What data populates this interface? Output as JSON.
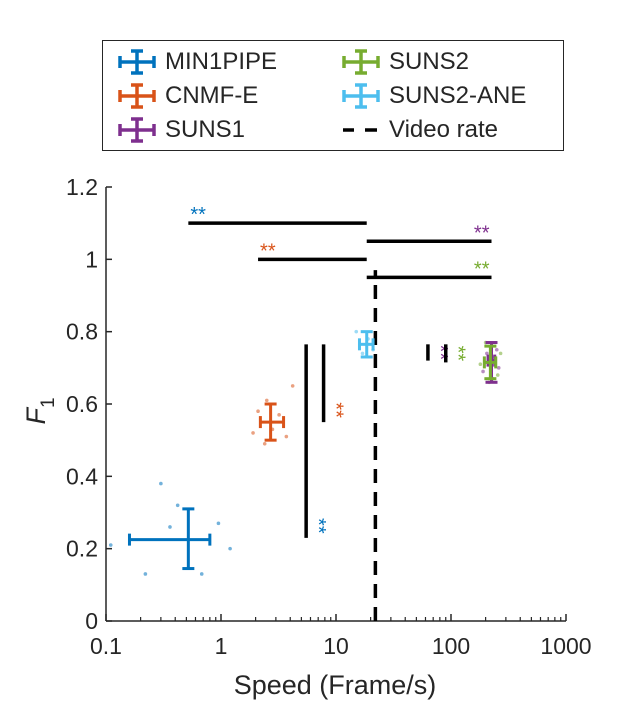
{
  "chart_data": {
    "type": "scatter",
    "xlabel": "Speed (Frame/s)",
    "ylabel": "F",
    "ylabel_subscript": "1",
    "x_scale": "log",
    "xlim": [
      0.1,
      1000
    ],
    "ylim": [
      0,
      1.2
    ],
    "x_ticks": [
      "0.1",
      "1",
      "10",
      "100",
      "1000"
    ],
    "y_ticks": [
      "0",
      "0.2",
      "0.4",
      "0.6",
      "0.8",
      "1",
      "1.2"
    ],
    "legend": {
      "placement": "top",
      "columns": 2
    },
    "series": [
      {
        "name": "MIN1PIPE",
        "color": "#0072BD",
        "x": 0.52,
        "x_err": [
          0.16,
          0.8
        ],
        "y": 0.225,
        "y_err": [
          0.145,
          0.31
        ],
        "points": [
          [
            0.11,
            0.21
          ],
          [
            0.22,
            0.13
          ],
          [
            0.3,
            0.38
          ],
          [
            0.36,
            0.26
          ],
          [
            0.42,
            0.32
          ],
          [
            0.68,
            0.13
          ],
          [
            0.95,
            0.27
          ],
          [
            1.2,
            0.2
          ]
        ]
      },
      {
        "name": "CNMF-E",
        "color": "#D95319",
        "x": 2.7,
        "x_err": [
          2.2,
          3.5
        ],
        "y": 0.55,
        "y_err": [
          0.5,
          0.6
        ],
        "points": [
          [
            1.9,
            0.52
          ],
          [
            2.1,
            0.58
          ],
          [
            2.4,
            0.49
          ],
          [
            2.8,
            0.53
          ],
          [
            3.2,
            0.57
          ],
          [
            3.7,
            0.51
          ],
          [
            4.2,
            0.65
          ],
          [
            2.5,
            0.61
          ]
        ]
      },
      {
        "name": "SUNS1",
        "color": "#7E2F8E",
        "x": 225,
        "x_err": [
          210,
          240
        ],
        "y": 0.72,
        "y_err": [
          0.66,
          0.77
        ],
        "points": [
          [
            190,
            0.69
          ],
          [
            205,
            0.74
          ],
          [
            230,
            0.67
          ],
          [
            250,
            0.75
          ],
          [
            260,
            0.7
          ]
        ]
      },
      {
        "name": "SUNS2",
        "color": "#77AC30",
        "x": 220,
        "x_err": [
          195,
          245
        ],
        "y": 0.715,
        "y_err": [
          0.67,
          0.76
        ],
        "points": [
          [
            180,
            0.71
          ],
          [
            200,
            0.77
          ],
          [
            215,
            0.66
          ],
          [
            240,
            0.73
          ],
          [
            255,
            0.68
          ],
          [
            270,
            0.74
          ]
        ]
      },
      {
        "name": "SUNS2-ANE",
        "color": "#4DBEEE",
        "x": 18.5,
        "x_err": [
          16,
          21
        ],
        "y": 0.765,
        "y_err": [
          0.73,
          0.8
        ],
        "points": [
          [
            15,
            0.8
          ],
          [
            17,
            0.74
          ],
          [
            19,
            0.78
          ],
          [
            21,
            0.75
          ]
        ]
      },
      {
        "name": "Video rate",
        "color": "#000000",
        "x": 22,
        "style": "dashed-vertical"
      }
    ],
    "significance": [
      {
        "label": "**",
        "color": "#0072BD",
        "type": "horizontal",
        "x": [
          0.52,
          18.5
        ],
        "y": 1.1
      },
      {
        "label": "**",
        "color": "#D95319",
        "type": "horizontal",
        "x": [
          2.1,
          18.5
        ],
        "y": 1.0
      },
      {
        "label": "**",
        "color": "#7E2F8E",
        "type": "horizontal",
        "x": [
          18.5,
          225
        ],
        "y": 1.05
      },
      {
        "label": "**",
        "color": "#77AC30",
        "type": "horizontal",
        "x": [
          18.5,
          225
        ],
        "y": 0.95
      },
      {
        "label": "**",
        "color": "#0072BD",
        "type": "vertical",
        "x": 5.5,
        "y": [
          0.23,
          0.765
        ]
      },
      {
        "label": "**",
        "color": "#D95319",
        "type": "vertical",
        "x": 7.8,
        "y": [
          0.55,
          0.765
        ]
      },
      {
        "label": "**",
        "color": "#7E2F8E",
        "type": "vertical",
        "x": 63,
        "y": [
          0.72,
          0.765
        ]
      },
      {
        "label": "**",
        "color": "#77AC30",
        "type": "vertical",
        "x": 90,
        "y": [
          0.715,
          0.765
        ]
      }
    ]
  },
  "legend": {
    "items": [
      {
        "name": "MIN1PIPE",
        "color": "#0072BD",
        "kind": "errorbar"
      },
      {
        "name": "CNMF-E",
        "color": "#D95319",
        "kind": "errorbar"
      },
      {
        "name": "SUNS1",
        "color": "#7E2F8E",
        "kind": "errorbar"
      },
      {
        "name": "SUNS2",
        "color": "#77AC30",
        "kind": "errorbar"
      },
      {
        "name": "SUNS2-ANE",
        "color": "#4DBEEE",
        "kind": "errorbar"
      },
      {
        "name": "Video rate",
        "color": "#000000",
        "kind": "dashed"
      }
    ]
  }
}
